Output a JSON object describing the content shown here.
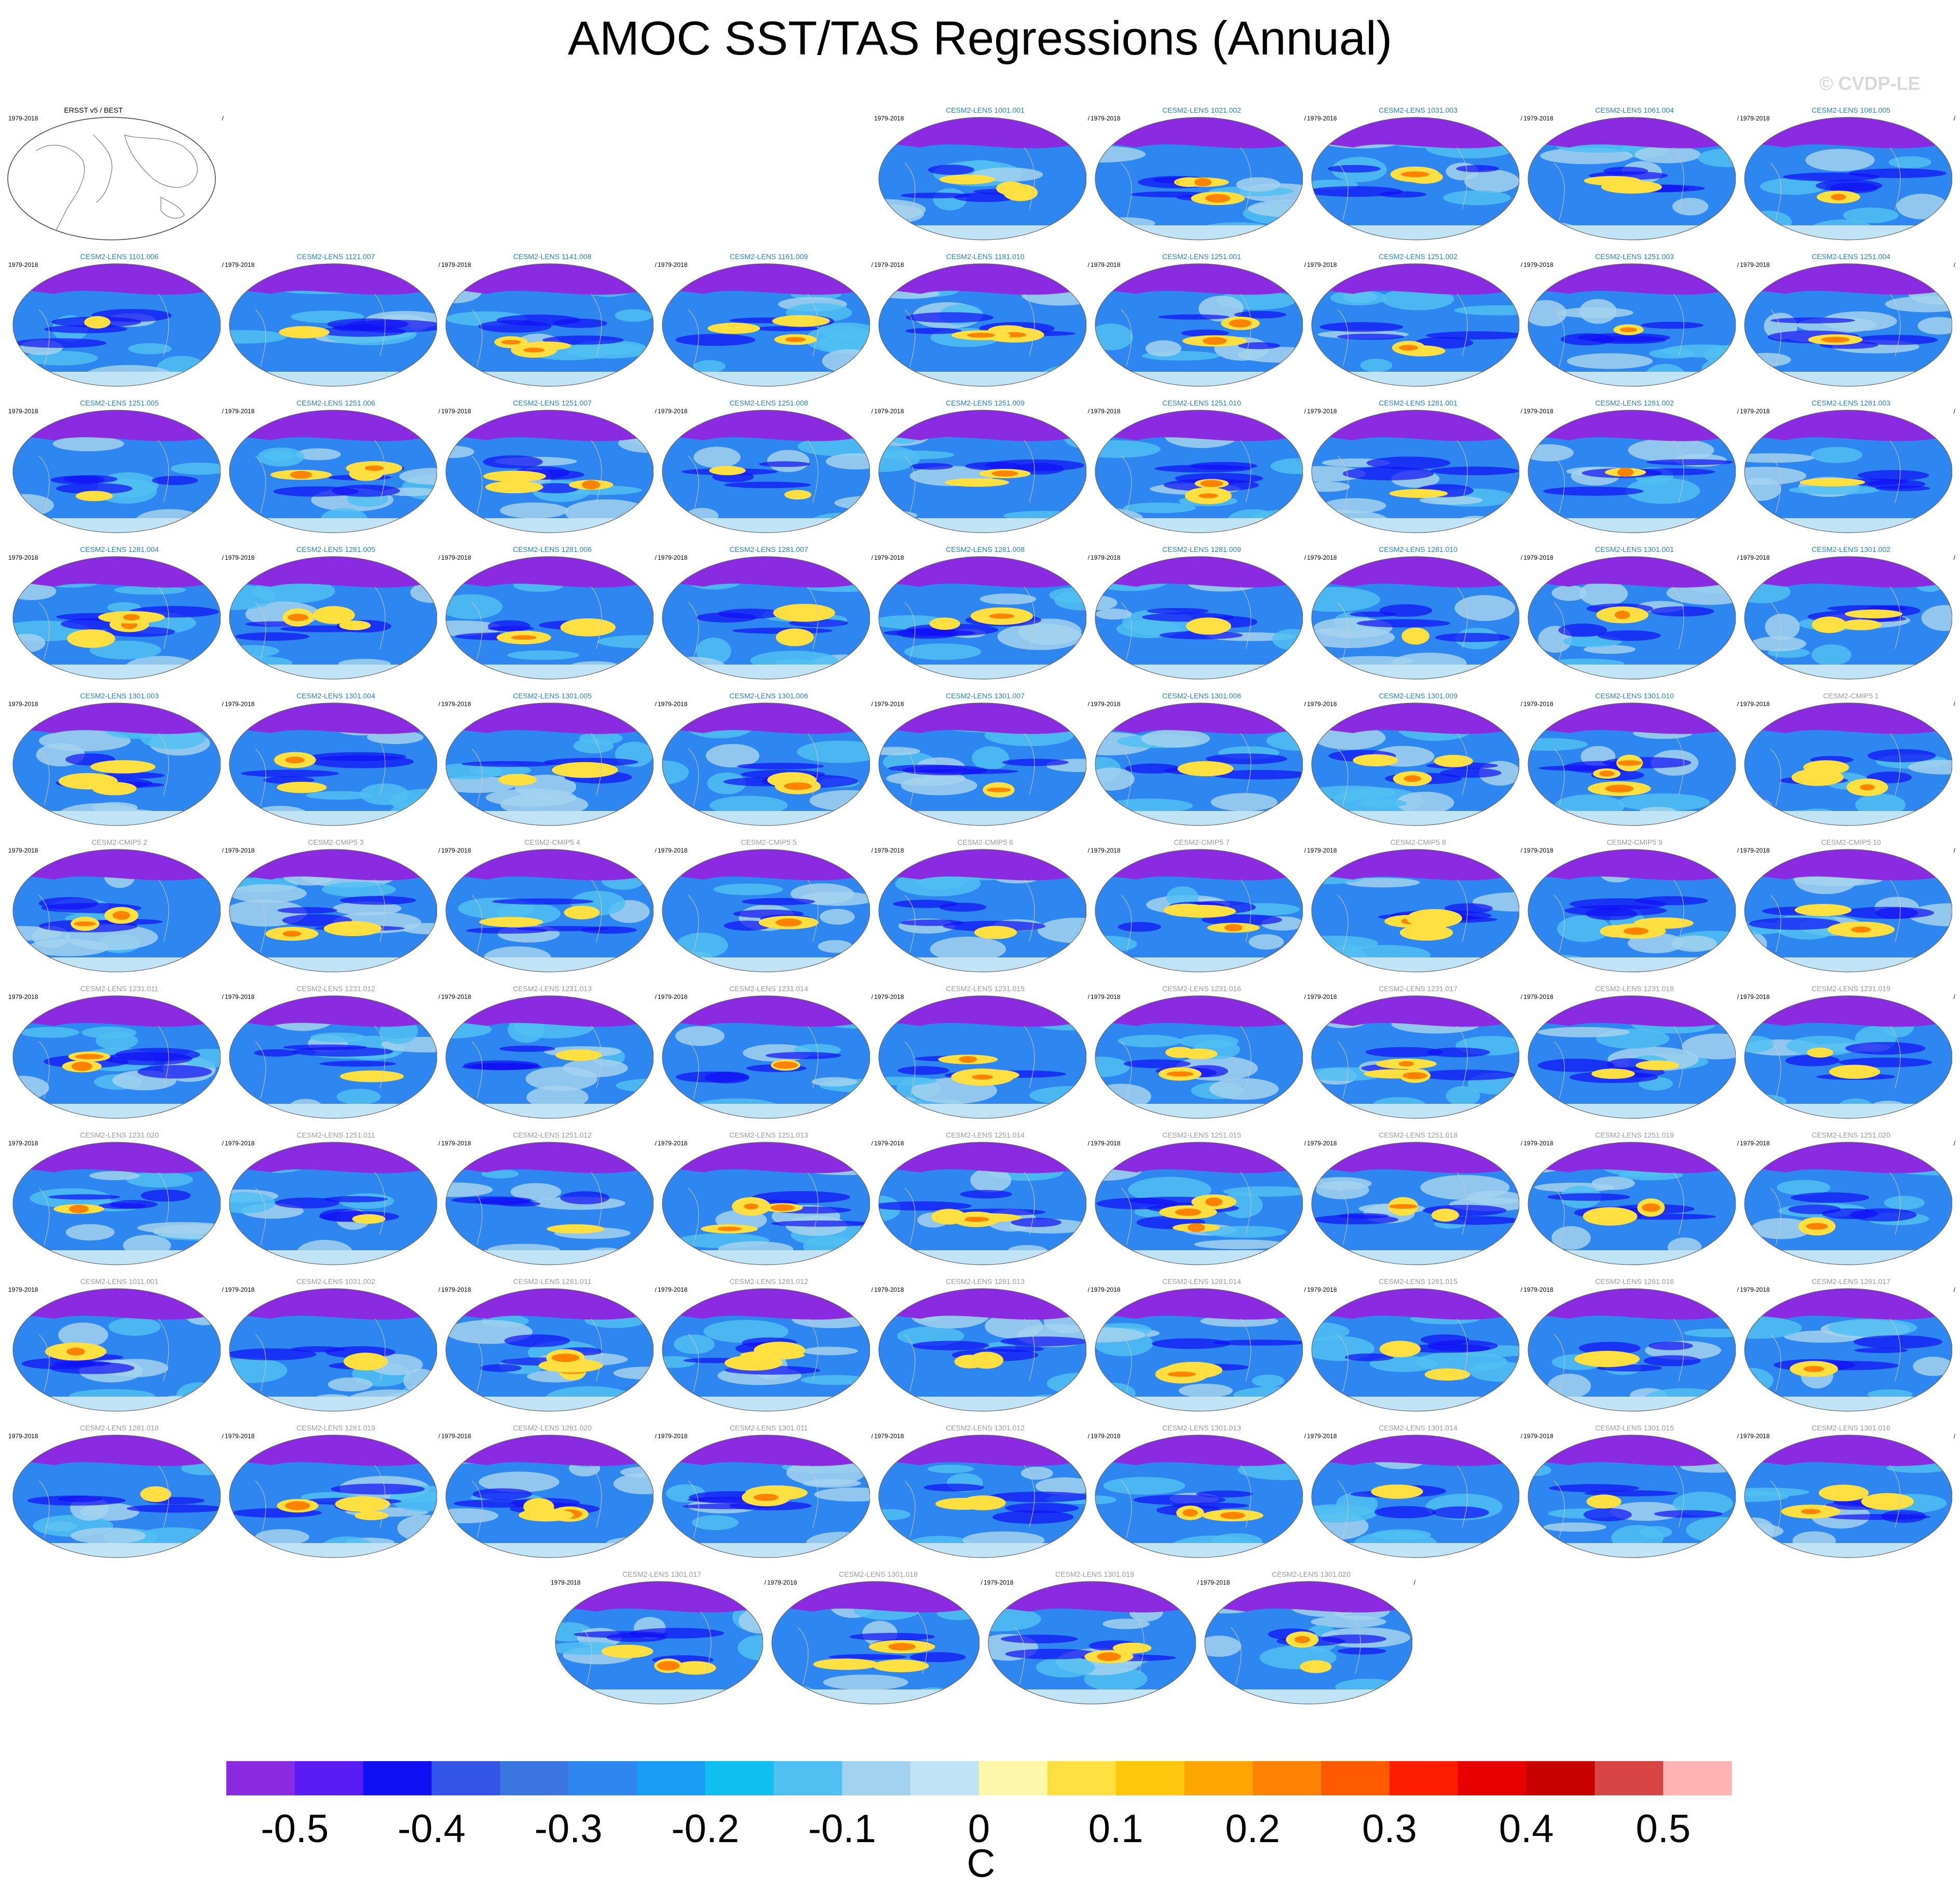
{
  "title": "AMOC SST/TAS Regressions (Annual)",
  "watermark": "© CVDP-LE",
  "period": "1979-2018",
  "colorbar": {
    "unit": "C",
    "tick_labels": [
      "-0.5",
      "-0.4",
      "-0.3",
      "-0.2",
      "-0.1",
      "0",
      "0.1",
      "0.2",
      "0.3",
      "0.4",
      "0.5"
    ],
    "colors": [
      "#8a2be2",
      "#5a1bf5",
      "#1010f5",
      "#3355e8",
      "#3a75e0",
      "#2e86f0",
      "#189ef5",
      "#10bff0",
      "#50c0f2",
      "#a2d2ef",
      "#c0e4f6",
      "#fff7a8",
      "#ffe040",
      "#ffc70a",
      "#ffa500",
      "#ff8200",
      "#ff5a00",
      "#ff1d00",
      "#e80000",
      "#c80000",
      "#d94545",
      "#ffb3b3"
    ]
  },
  "chart_data": {
    "type": "heatmap",
    "title": "AMOC SST/TAS Regressions (Annual)",
    "units": "C",
    "period": "1979-2018",
    "colorbar_range": [
      -0.55,
      0.55
    ],
    "colorbar_ticks": [
      -0.5,
      -0.4,
      -0.3,
      -0.2,
      -0.1,
      0,
      0.1,
      0.2,
      0.3,
      0.4,
      0.5
    ],
    "observations": "ERSST v5 / BEST",
    "panels": [
      {
        "label": "CESM2-LENS 1001.001",
        "style": "blue"
      },
      {
        "label": "CESM2-LENS 1021.002",
        "style": "blue"
      },
      {
        "label": "CESM2-LENS 1031.003",
        "style": "blue"
      },
      {
        "label": "CESM2-LENS 1061.004",
        "style": "blue"
      },
      {
        "label": "CESM2-LENS 1081.005",
        "style": "blue"
      },
      {
        "label": "CESM2-LENS 1101.006",
        "style": "blue"
      },
      {
        "label": "CESM2-LENS 1121.007",
        "style": "blue"
      },
      {
        "label": "CESM2-LENS 1141.008",
        "style": "blue"
      },
      {
        "label": "CESM2-LENS 1161.009",
        "style": "blue"
      },
      {
        "label": "CESM2-LENS 1181.010",
        "style": "blue"
      },
      {
        "label": "CESM2-LENS 1251.001",
        "style": "blue"
      },
      {
        "label": "CESM2-LENS 1251.002",
        "style": "blue"
      },
      {
        "label": "CESM2-LENS 1251.003",
        "style": "blue"
      },
      {
        "label": "CESM2-LENS 1251.004",
        "style": "blue"
      },
      {
        "label": "CESM2-LENS 1251.005",
        "style": "blue"
      },
      {
        "label": "CESM2-LENS 1251.006",
        "style": "blue"
      },
      {
        "label": "CESM2-LENS 1251.007",
        "style": "blue"
      },
      {
        "label": "CESM2-LENS 1251.008",
        "style": "blue"
      },
      {
        "label": "CESM2-LENS 1251.009",
        "style": "blue"
      },
      {
        "label": "CESM2-LENS 1251.010",
        "style": "blue"
      },
      {
        "label": "CESM2-LENS 1281.001",
        "style": "blue"
      },
      {
        "label": "CESM2-LENS 1281.002",
        "style": "blue"
      },
      {
        "label": "CESM2-LENS 1281.003",
        "style": "blue"
      },
      {
        "label": "CESM2-LENS 1281.004",
        "style": "blue"
      },
      {
        "label": "CESM2-LENS 1281.005",
        "style": "blue"
      },
      {
        "label": "CESM2-LENS 1281.006",
        "style": "blue"
      },
      {
        "label": "CESM2-LENS 1281.007",
        "style": "blue"
      },
      {
        "label": "CESM2-LENS 1281.008",
        "style": "blue"
      },
      {
        "label": "CESM2-LENS 1281.009",
        "style": "blue"
      },
      {
        "label": "CESM2-LENS 1281.010",
        "style": "blue"
      },
      {
        "label": "CESM2-LENS 1301.001",
        "style": "blue"
      },
      {
        "label": "CESM2-LENS 1301.002",
        "style": "blue"
      },
      {
        "label": "CESM2-LENS 1301.003",
        "style": "blue"
      },
      {
        "label": "CESM2-LENS 1301.004",
        "style": "blue"
      },
      {
        "label": "CESM2-LENS 1301.005",
        "style": "blue"
      },
      {
        "label": "CESM2-LENS 1301.006",
        "style": "blue"
      },
      {
        "label": "CESM2-LENS 1301.007",
        "style": "blue"
      },
      {
        "label": "CESM2-LENS 1301.008",
        "style": "blue"
      },
      {
        "label": "CESM2-LENS 1301.009",
        "style": "blue"
      },
      {
        "label": "CESM2-LENS 1301.010",
        "style": "blue"
      },
      {
        "label": "CESM2-CMIP5 1",
        "style": "gray"
      },
      {
        "label": "CESM2-CMIP5 2",
        "style": "gray"
      },
      {
        "label": "CESM2-CMIP5 3",
        "style": "gray"
      },
      {
        "label": "CESM2-CMIP5 4",
        "style": "gray"
      },
      {
        "label": "CESM2-CMIP5 5",
        "style": "gray"
      },
      {
        "label": "CESM2-CMIP5 6",
        "style": "gray"
      },
      {
        "label": "CESM2-CMIP5 7",
        "style": "gray"
      },
      {
        "label": "CESM2-CMIP5 8",
        "style": "gray"
      },
      {
        "label": "CESM2-CMIP5 9",
        "style": "gray"
      },
      {
        "label": "CESM2-CMIP5 10",
        "style": "gray"
      },
      {
        "label": "CESM2-LENS 1231.011",
        "style": "gray"
      },
      {
        "label": "CESM2-LENS 1231.012",
        "style": "gray"
      },
      {
        "label": "CESM2-LENS 1231.013",
        "style": "gray"
      },
      {
        "label": "CESM2-LENS 1231.014",
        "style": "gray"
      },
      {
        "label": "CESM2-LENS 1231.015",
        "style": "gray"
      },
      {
        "label": "CESM2-LENS 1231.016",
        "style": "gray"
      },
      {
        "label": "CESM2-LENS 1231.017",
        "style": "gray"
      },
      {
        "label": "CESM2-LENS 1231.018",
        "style": "gray"
      },
      {
        "label": "CESM2-LENS 1231.019",
        "style": "gray"
      },
      {
        "label": "CESM2-LENS 1231.020",
        "style": "gray"
      },
      {
        "label": "CESM2-LENS 1251.011",
        "style": "gray"
      },
      {
        "label": "CESM2-LENS 1251.012",
        "style": "gray"
      },
      {
        "label": "CESM2-LENS 1251.013",
        "style": "gray"
      },
      {
        "label": "CESM2-LENS 1251.014",
        "style": "gray"
      },
      {
        "label": "CESM2-LENS 1251.015",
        "style": "gray"
      },
      {
        "label": "CESM2-LENS 1251.018",
        "style": "gray"
      },
      {
        "label": "CESM2-LENS 1251.019",
        "style": "gray"
      },
      {
        "label": "CESM2-LENS 1251.020",
        "style": "gray"
      },
      {
        "label": "CESM2-LENS 1011.001",
        "style": "gray"
      },
      {
        "label": "CESM2-LENS 1031.002",
        "style": "gray"
      },
      {
        "label": "CESM2-LENS 1281.011",
        "style": "gray"
      },
      {
        "label": "CESM2-LENS 1281.012",
        "style": "gray"
      },
      {
        "label": "CESM2-LENS 1281.013",
        "style": "gray"
      },
      {
        "label": "CESM2-LENS 1281.014",
        "style": "gray"
      },
      {
        "label": "CESM2-LENS 1281.015",
        "style": "gray"
      },
      {
        "label": "CESM2-LENS 1281.016",
        "style": "gray"
      },
      {
        "label": "CESM2-LENS 1281.017",
        "style": "gray"
      },
      {
        "label": "CESM2-LENS 1281.018",
        "style": "gray"
      },
      {
        "label": "CESM2-LENS 1281.019",
        "style": "gray"
      },
      {
        "label": "CESM2-LENS 1281.020",
        "style": "gray"
      },
      {
        "label": "CESM2-LENS 1301.011",
        "style": "gray"
      },
      {
        "label": "CESM2-LENS 1301.012",
        "style": "gray"
      },
      {
        "label": "CESM2-LENS 1301.013",
        "style": "gray"
      },
      {
        "label": "CESM2-LENS 1301.014",
        "style": "gray"
      },
      {
        "label": "CESM2-LENS 1301.015",
        "style": "gray"
      },
      {
        "label": "CESM2-LENS 1301.016",
        "style": "gray"
      },
      {
        "label": "CESM2-LENS 1301.017",
        "style": "gray"
      },
      {
        "label": "CESM2-LENS 1301.018",
        "style": "gray"
      },
      {
        "label": "CESM2-LENS 1301.019",
        "style": "gray"
      },
      {
        "label": "CESM2-LENS 1301.020",
        "style": "gray"
      }
    ]
  }
}
